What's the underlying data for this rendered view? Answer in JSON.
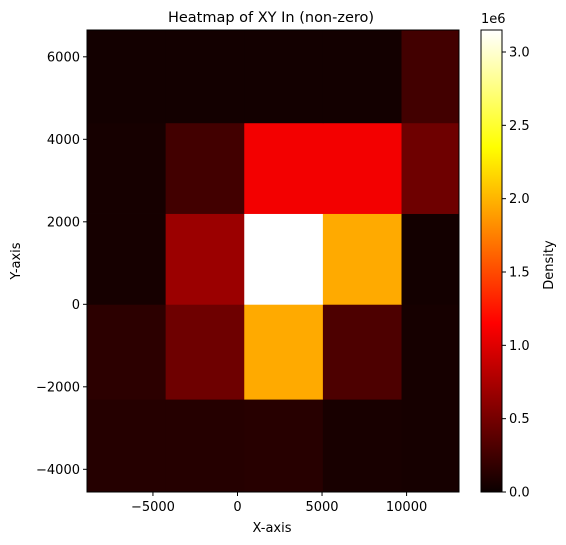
{
  "chart_data": {
    "type": "heatmap",
    "title": "Heatmap of XY In (non-zero)",
    "xlabel": "X-axis",
    "ylabel": "Y-axis",
    "x_edges": [
      -8900,
      -4250,
      400,
      5050,
      9700,
      13100
    ],
    "y_edges": [
      -4550,
      -2300,
      0,
      2200,
      4400,
      6650
    ],
    "xlim": [
      -8900,
      13100
    ],
    "ylim": [
      -4550,
      6650
    ],
    "x_ticks": [
      -5000,
      0,
      5000,
      10000
    ],
    "x_tick_labels": [
      "−5000",
      "0",
      "5000",
      "10000"
    ],
    "y_ticks": [
      -4000,
      -2000,
      0,
      2000,
      4000,
      6000
    ],
    "y_tick_labels": [
      "−4000",
      "−2000",
      "0",
      "2000",
      "4000",
      "6000"
    ],
    "values_note_rows_bottom_to_top": true,
    "values": [
      [
        0.12,
        0.12,
        0.13,
        0.06,
        0.05
      ],
      [
        0.15,
        0.45,
        1.95,
        0.3,
        0.05
      ],
      [
        0.05,
        0.65,
        3.15,
        1.95,
        0.04
      ],
      [
        0.05,
        0.25,
        1.05,
        1.05,
        0.45
      ],
      [
        0.04,
        0.04,
        0.04,
        0.04,
        0.25
      ]
    ],
    "colorbar": {
      "label": "Density",
      "scale_label": "1e6",
      "colormap": "hot",
      "vmin": 0.0,
      "vmax": 3.15,
      "ticks": [
        0.0,
        0.5,
        1.0,
        1.5,
        2.0,
        2.5,
        3.0
      ],
      "tick_labels": [
        "0.0",
        "0.5",
        "1.0",
        "1.5",
        "2.0",
        "2.5",
        "3.0"
      ]
    }
  }
}
